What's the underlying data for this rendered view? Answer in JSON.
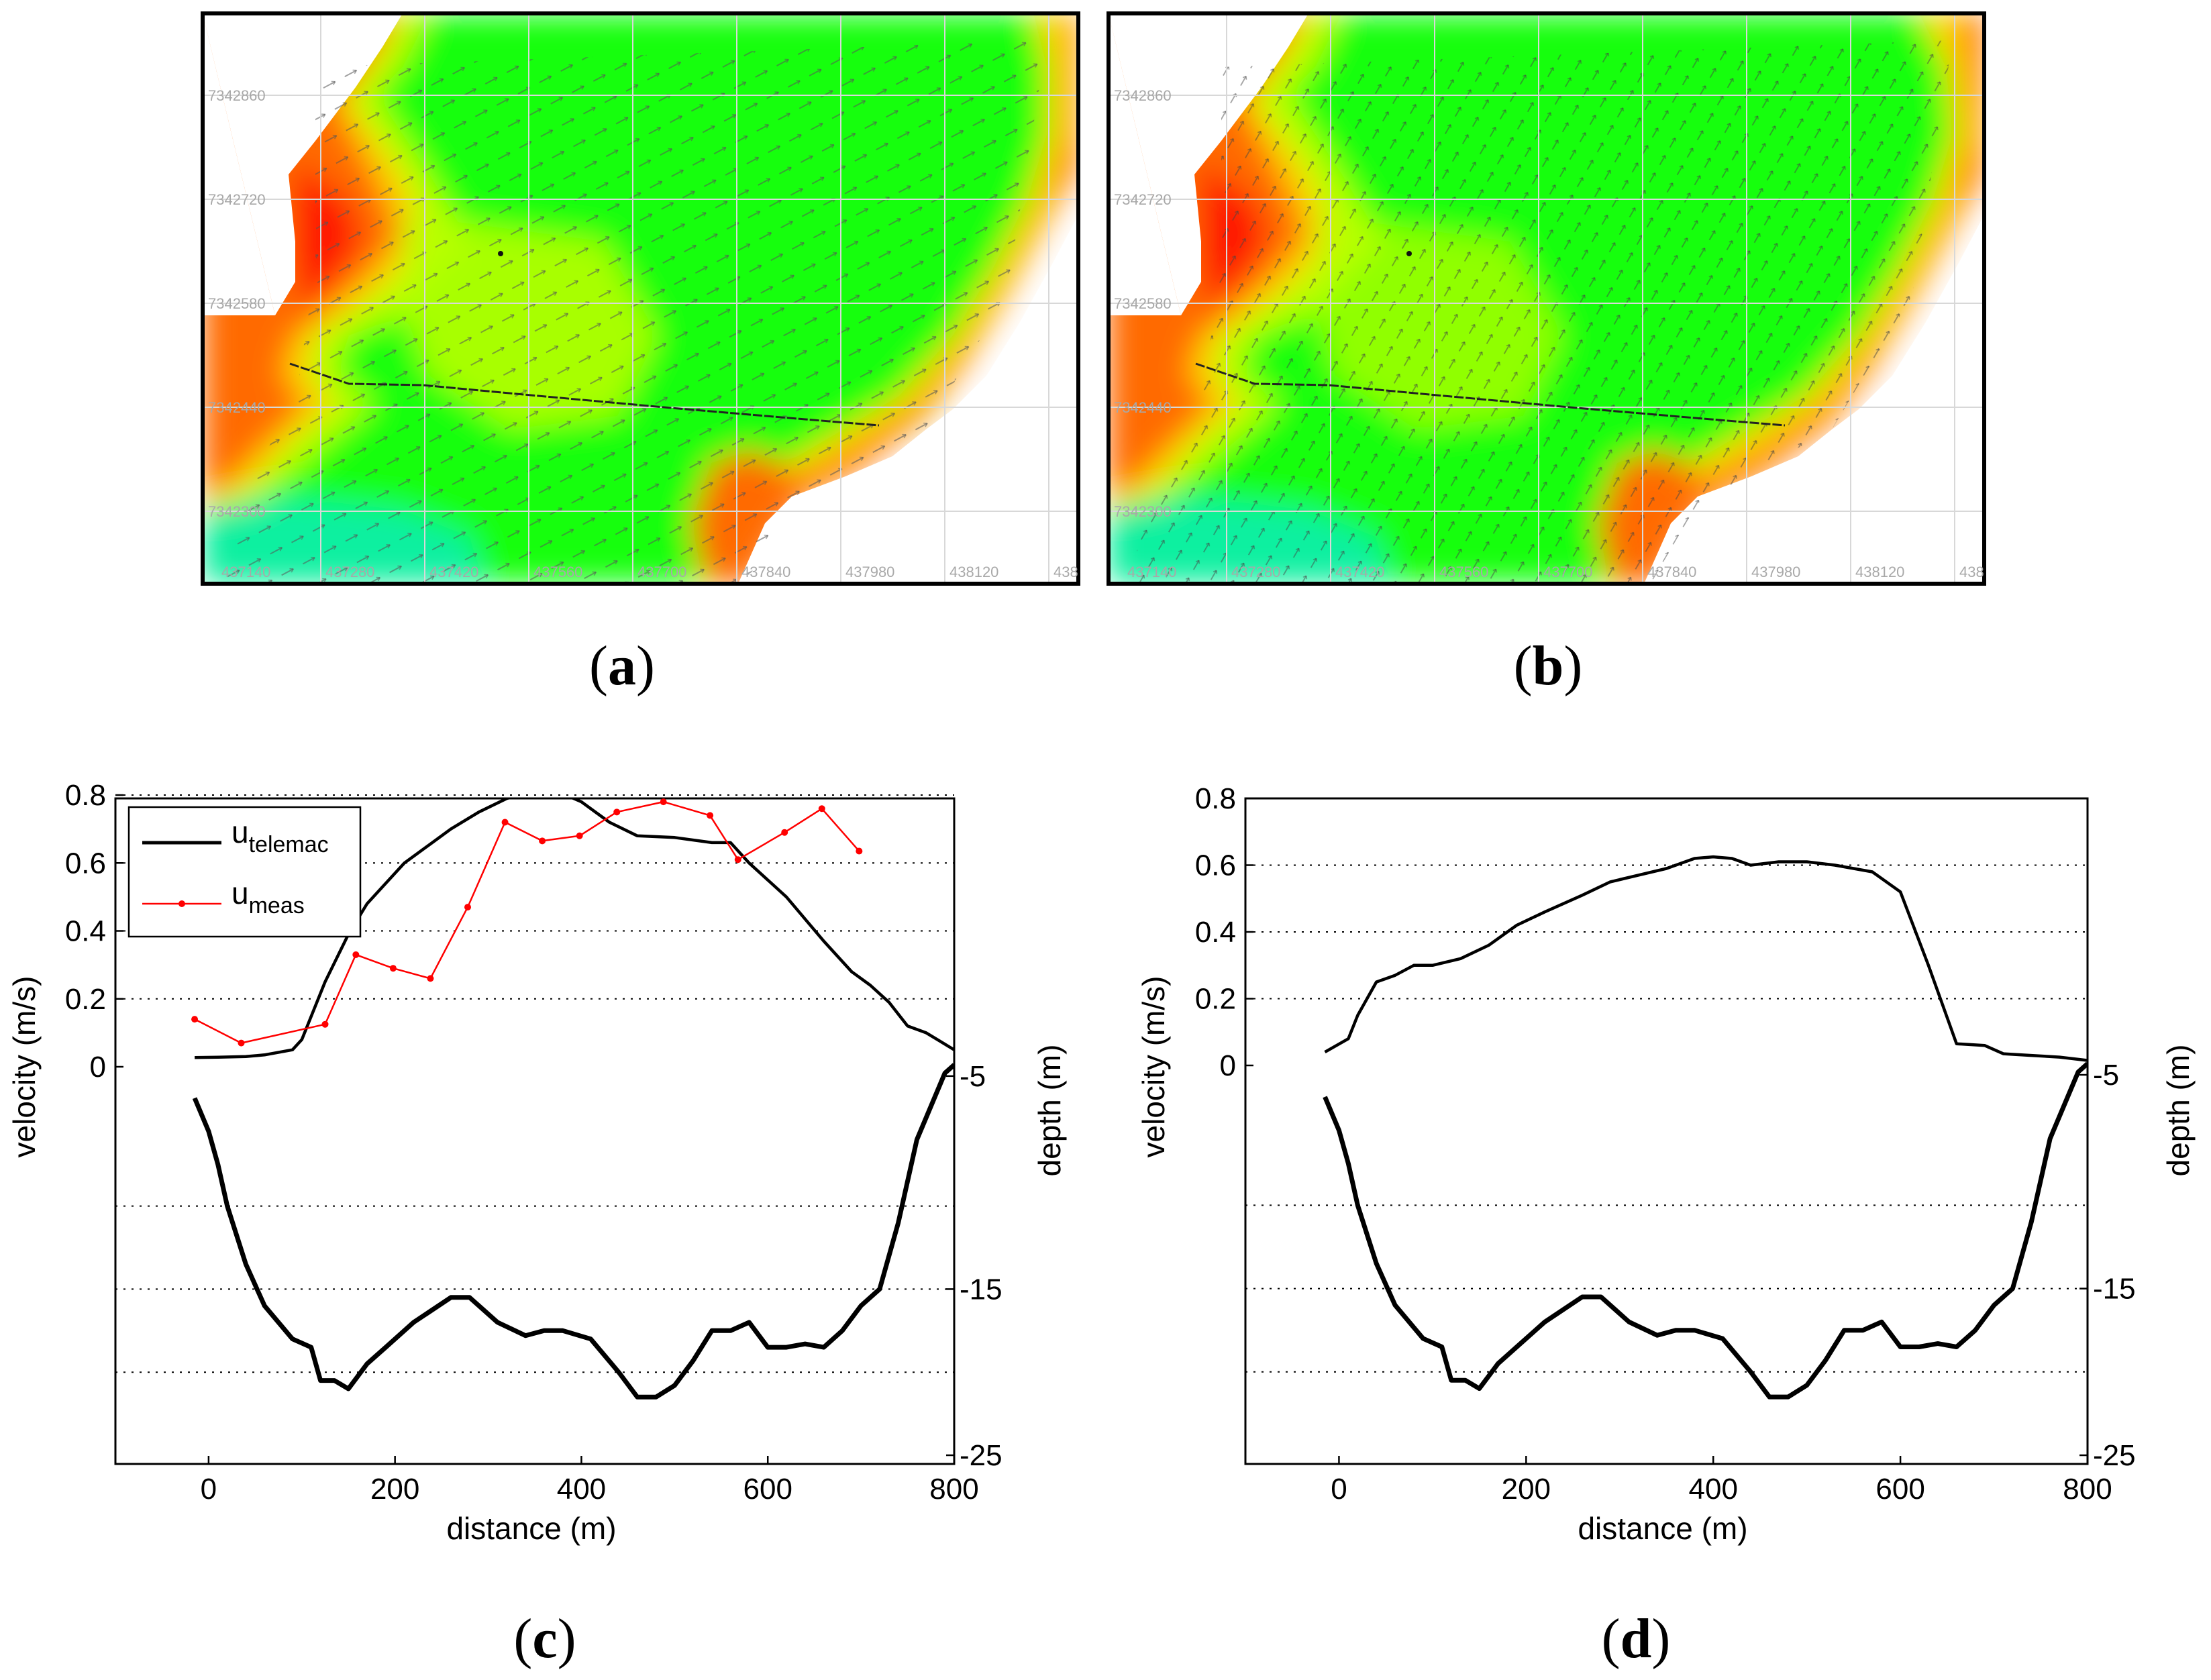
{
  "maps": [
    {
      "panel_label": "a",
      "northing_labels": [
        "7342860",
        "7342720",
        "7342580",
        "7342440",
        "7342300"
      ],
      "easting_labels": [
        "437140",
        "437280",
        "437420",
        "437560",
        "437700",
        "437840",
        "437980",
        "438120",
        "438"
      ]
    },
    {
      "panel_label": "b",
      "northing_labels": [
        "7342860",
        "7342720",
        "7342580",
        "7342440",
        "7342300"
      ],
      "easting_labels": [
        "437140",
        "437280",
        "437420",
        "437560",
        "437700",
        "437840",
        "437980",
        "438120",
        "438"
      ]
    }
  ],
  "colors": {
    "red": "#ff1800",
    "orange": "#ff6a00",
    "yellow": "#ffd400",
    "yellowgreen": "#b8ff00",
    "green": "#18ff10",
    "teal": "#10f0a0",
    "line_meas": "#ff0000",
    "line_model": "#000000"
  },
  "chart_data": [
    {
      "type": "line",
      "panel_label": "c",
      "xlabel": "distance (m)",
      "ylabel": "velocity (m/s)",
      "y2label": "depth (m)",
      "xlim": [
        -100,
        800
      ],
      "xticks": [
        "0",
        "200",
        "400",
        "600",
        "800"
      ],
      "yticks": [
        "0",
        "0.2",
        "0.4",
        "0.6",
        "0.8"
      ],
      "y2ticks": [
        "-5",
        "-15",
        "-25"
      ],
      "legend": {
        "position": "top-left",
        "entries": [
          {
            "base": "u",
            "sub": "telemac"
          },
          {
            "base": "u",
            "sub": "meas"
          }
        ]
      },
      "series": [
        {
          "name": "u_telemac",
          "axis": "velocity",
          "x": [
            -15,
            10,
            40,
            60,
            90,
            100,
            125,
            150,
            170,
            190,
            210,
            240,
            260,
            290,
            320,
            350,
            375,
            400,
            430,
            460,
            500,
            540,
            560,
            580,
            620,
            660,
            690,
            710,
            730,
            750,
            770,
            800
          ],
          "y": [
            0.027,
            0.028,
            0.03,
            0.035,
            0.05,
            0.08,
            0.25,
            0.39,
            0.48,
            0.54,
            0.6,
            0.66,
            0.7,
            0.75,
            0.79,
            0.81,
            0.81,
            0.78,
            0.72,
            0.68,
            0.675,
            0.66,
            0.66,
            0.6,
            0.5,
            0.37,
            0.28,
            0.24,
            0.19,
            0.12,
            0.1,
            0.05
          ]
        },
        {
          "name": "u_meas",
          "axis": "velocity",
          "x": [
            -15,
            35,
            125,
            158,
            198,
            238,
            278,
            318,
            358,
            398,
            438,
            488,
            538,
            568,
            618,
            658,
            698
          ],
          "y": [
            0.14,
            0.07,
            0.125,
            0.33,
            0.29,
            0.26,
            0.47,
            0.72,
            0.665,
            0.68,
            0.75,
            0.78,
            0.74,
            0.61,
            0.69,
            0.76,
            0.635
          ]
        },
        {
          "name": "depth",
          "axis": "depth",
          "x": [
            -15,
            0,
            10,
            20,
            40,
            60,
            90,
            110,
            120,
            135,
            150,
            170,
            190,
            220,
            260,
            280,
            310,
            340,
            360,
            380,
            410,
            440,
            460,
            480,
            500,
            520,
            540,
            560,
            580,
            600,
            620,
            640,
            660,
            680,
            700,
            720,
            740,
            760,
            790,
            800
          ],
          "y": [
            -3.5,
            -5.5,
            -7.5,
            -10,
            -13.5,
            -16,
            -18,
            -18.5,
            -20.5,
            -20.5,
            -21.0,
            -19.5,
            -18.5,
            -17.0,
            -15.5,
            -15.5,
            -17.0,
            -17.8,
            -17.5,
            -17.5,
            -18.0,
            -20.0,
            -21.5,
            -21.5,
            -20.8,
            -19.3,
            -17.5,
            -17.5,
            -17.0,
            -18.5,
            -18.5,
            -18.3,
            -18.5,
            -17.5,
            -16.0,
            -15.0,
            -11.0,
            -6.0,
            -2.0,
            -1.5
          ]
        }
      ]
    },
    {
      "type": "line",
      "panel_label": "d",
      "xlabel": "distance (m)",
      "ylabel": "velocity (m/s)",
      "y2label": "depth (m)",
      "xlim": [
        -100,
        800
      ],
      "xticks": [
        "0",
        "200",
        "400",
        "600",
        "800"
      ],
      "yticks": [
        "0",
        "0.2",
        "0.4",
        "0.6",
        "0.8"
      ],
      "y2ticks": [
        "-5",
        "-15",
        "-25"
      ],
      "series": [
        {
          "name": "u_telemac",
          "axis": "velocity",
          "x": [
            -15,
            10,
            20,
            40,
            60,
            80,
            100,
            130,
            160,
            190,
            220,
            260,
            290,
            320,
            350,
            380,
            400,
            420,
            440,
            470,
            500,
            530,
            550,
            570,
            600,
            630,
            660,
            690,
            710,
            740,
            770,
            800
          ],
          "y": [
            0.04,
            0.08,
            0.15,
            0.25,
            0.27,
            0.3,
            0.3,
            0.32,
            0.36,
            0.42,
            0.46,
            0.51,
            0.55,
            0.57,
            0.59,
            0.62,
            0.625,
            0.62,
            0.6,
            0.61,
            0.61,
            0.6,
            0.59,
            0.58,
            0.52,
            0.3,
            0.065,
            0.06,
            0.035,
            0.03,
            0.025,
            0.015
          ]
        },
        {
          "name": "depth",
          "axis": "depth",
          "x": [
            -15,
            0,
            10,
            20,
            40,
            60,
            90,
            110,
            120,
            135,
            150,
            170,
            190,
            220,
            260,
            280,
            310,
            340,
            360,
            380,
            410,
            440,
            460,
            480,
            500,
            520,
            540,
            560,
            580,
            600,
            620,
            640,
            660,
            680,
            700,
            720,
            740,
            760,
            790,
            800
          ],
          "y": [
            -3.5,
            -5.5,
            -7.5,
            -10,
            -13.5,
            -16,
            -18,
            -18.5,
            -20.5,
            -20.5,
            -21.0,
            -19.5,
            -18.5,
            -17.0,
            -15.5,
            -15.5,
            -17.0,
            -17.8,
            -17.5,
            -17.5,
            -18.0,
            -20.0,
            -21.5,
            -21.5,
            -20.8,
            -19.3,
            -17.5,
            -17.5,
            -17.0,
            -18.5,
            -18.5,
            -18.3,
            -18.5,
            -17.5,
            -16.0,
            -15.0,
            -11.0,
            -6.0,
            -2.0,
            -1.5
          ]
        }
      ]
    }
  ]
}
